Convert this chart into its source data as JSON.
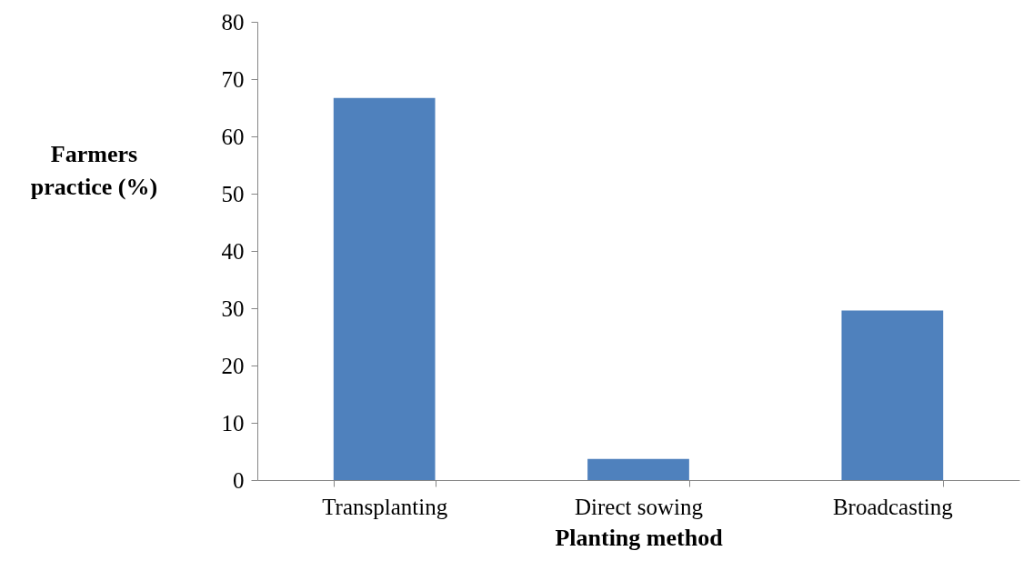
{
  "chart_data": {
    "type": "bar",
    "categories": [
      "Transplanting",
      "Direct sowing",
      "Broadcasting"
    ],
    "values": [
      66.7,
      3.7,
      29.6
    ],
    "color": "#4f81bd",
    "ylim": [
      0,
      80
    ],
    "yticks": [
      0,
      10,
      20,
      30,
      40,
      50,
      60,
      70,
      80
    ],
    "xlabel": "Planting method",
    "ylabel": "Farmers practice (%)",
    "grid": false
  }
}
